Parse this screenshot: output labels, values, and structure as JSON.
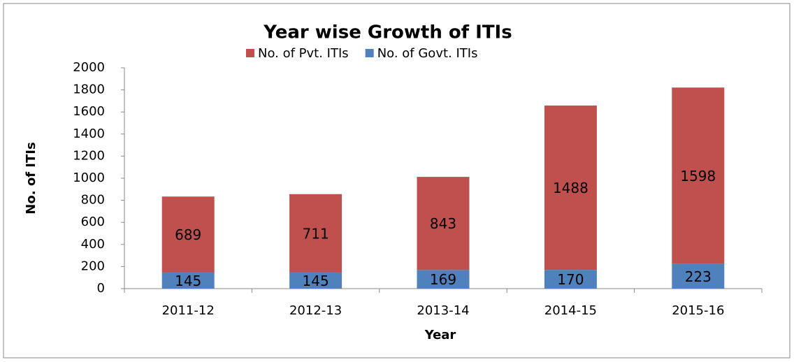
{
  "chart_data": {
    "type": "stacked_bar",
    "title": "Year wise Growth of ITIs",
    "x_label": "Year",
    "y_label": "No. of ITIs",
    "categories": [
      "2011-12",
      "2012-13",
      "2013-14",
      "2014-15",
      "2015-16"
    ],
    "series": [
      {
        "name": "No. of Govt. ITIs",
        "color": "#4f81bd",
        "values": [
          145,
          145,
          169,
          170,
          223
        ]
      },
      {
        "name": "No. of Pvt. ITIs",
        "color": "#c0504d",
        "values": [
          689,
          711,
          843,
          1488,
          1598
        ]
      }
    ],
    "ylim": [
      0,
      2000
    ],
    "yticks": [
      0,
      200,
      400,
      600,
      800,
      1000,
      1200,
      1400,
      1600,
      1800,
      2000
    ],
    "grid": false,
    "legend": "top"
  }
}
